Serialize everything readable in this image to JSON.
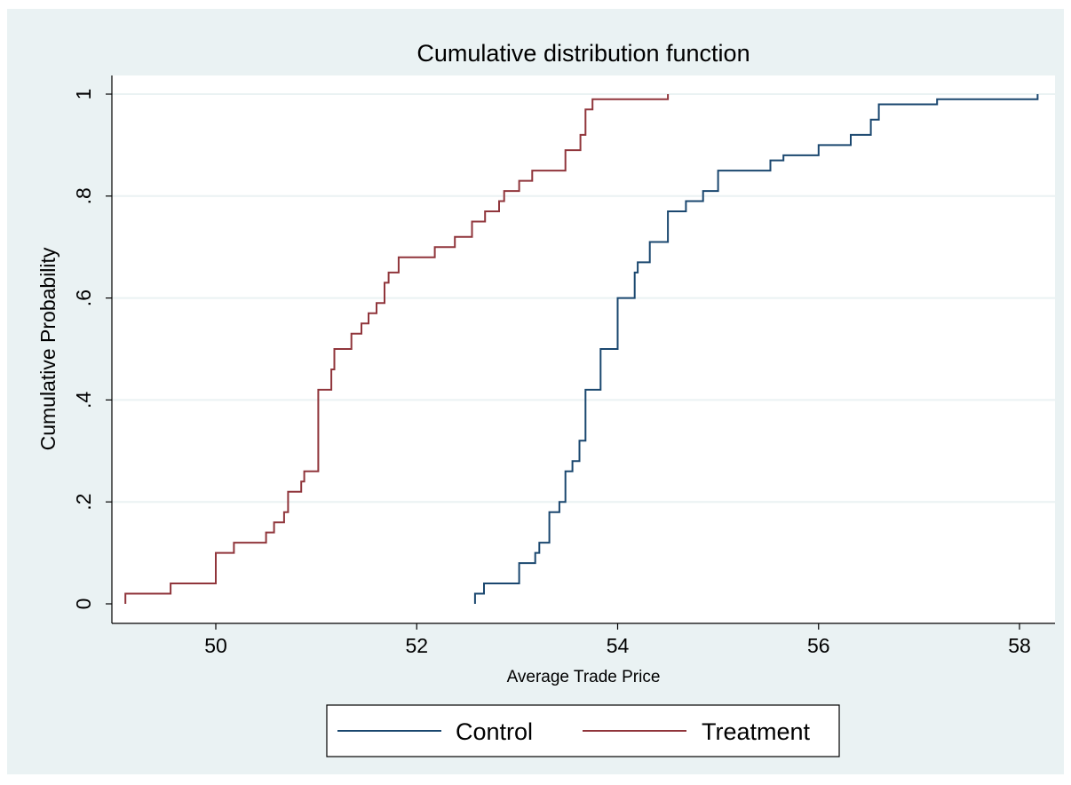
{
  "chart_data": {
    "type": "line",
    "title": "Cumulative distribution function",
    "xlabel": "Average Trade Price",
    "ylabel": "Cumulative Probability",
    "xlim": [
      49.1,
      58.2
    ],
    "ylim": [
      0,
      1
    ],
    "xticks": [
      50,
      52,
      54,
      56,
      58
    ],
    "xtick_labels": [
      "50",
      "52",
      "54",
      "56",
      "58"
    ],
    "yticks": [
      0,
      0.2,
      0.4,
      0.6,
      0.8,
      1
    ],
    "ytick_labels": [
      "0",
      ".2",
      ".4",
      ".6",
      ".8",
      "1"
    ],
    "grid": true,
    "legend_position": "bottom",
    "colors": {
      "background": "#eaf2f3",
      "plot_background": "#ffffff",
      "grid": "#eaf2f3",
      "control": "#1a476f",
      "treatment": "#90353b"
    },
    "series": [
      {
        "name": "Control",
        "color": "#1a476f",
        "x": [
          52.58,
          52.58,
          52.67,
          52.67,
          53.02,
          53.02,
          53.18,
          53.18,
          53.22,
          53.22,
          53.32,
          53.32,
          53.42,
          53.42,
          53.48,
          53.48,
          53.55,
          53.55,
          53.62,
          53.62,
          53.68,
          53.68,
          53.83,
          53.83,
          54.0,
          54.0,
          54.17,
          54.17,
          54.2,
          54.2,
          54.32,
          54.32,
          54.5,
          54.5,
          54.68,
          54.68,
          54.85,
          54.85,
          55.0,
          55.0,
          55.52,
          55.52,
          55.65,
          55.65,
          56.0,
          56.0,
          56.32,
          56.32,
          56.52,
          56.52,
          56.6,
          56.6,
          57.18,
          57.18,
          58.18,
          58.18
        ],
        "y": [
          0.0,
          0.02,
          0.02,
          0.04,
          0.04,
          0.08,
          0.08,
          0.1,
          0.1,
          0.12,
          0.12,
          0.18,
          0.18,
          0.2,
          0.2,
          0.26,
          0.26,
          0.28,
          0.28,
          0.32,
          0.32,
          0.42,
          0.42,
          0.5,
          0.5,
          0.6,
          0.6,
          0.65,
          0.65,
          0.67,
          0.67,
          0.71,
          0.71,
          0.77,
          0.77,
          0.79,
          0.79,
          0.81,
          0.81,
          0.85,
          0.85,
          0.87,
          0.87,
          0.88,
          0.88,
          0.9,
          0.9,
          0.92,
          0.92,
          0.95,
          0.95,
          0.98,
          0.98,
          0.99,
          0.99,
          1.0
        ]
      },
      {
        "name": "Treatment",
        "color": "#90353b",
        "x": [
          49.1,
          49.1,
          49.55,
          49.55,
          50.0,
          50.0,
          50.18,
          50.18,
          50.5,
          50.5,
          50.58,
          50.58,
          50.68,
          50.68,
          50.72,
          50.72,
          50.85,
          50.85,
          50.88,
          50.88,
          51.02,
          51.02,
          51.15,
          51.15,
          51.18,
          51.18,
          51.35,
          51.35,
          51.45,
          51.45,
          51.52,
          51.52,
          51.6,
          51.6,
          51.68,
          51.68,
          51.72,
          51.72,
          51.82,
          51.82,
          52.18,
          52.18,
          52.38,
          52.38,
          52.55,
          52.55,
          52.68,
          52.68,
          52.82,
          52.82,
          52.87,
          52.87,
          53.02,
          53.02,
          53.15,
          53.15,
          53.48,
          53.48,
          53.63,
          53.63,
          53.68,
          53.68,
          53.75,
          53.75,
          54.5,
          54.5
        ],
        "y": [
          0.0,
          0.02,
          0.02,
          0.04,
          0.04,
          0.1,
          0.1,
          0.12,
          0.12,
          0.14,
          0.14,
          0.16,
          0.16,
          0.18,
          0.18,
          0.22,
          0.22,
          0.24,
          0.24,
          0.26,
          0.26,
          0.42,
          0.42,
          0.46,
          0.46,
          0.5,
          0.5,
          0.53,
          0.53,
          0.55,
          0.55,
          0.57,
          0.57,
          0.59,
          0.59,
          0.63,
          0.63,
          0.65,
          0.65,
          0.68,
          0.68,
          0.7,
          0.7,
          0.72,
          0.72,
          0.75,
          0.75,
          0.77,
          0.77,
          0.79,
          0.79,
          0.81,
          0.81,
          0.83,
          0.83,
          0.85,
          0.85,
          0.89,
          0.89,
          0.92,
          0.92,
          0.97,
          0.97,
          0.99,
          0.99,
          1.0
        ]
      }
    ]
  }
}
